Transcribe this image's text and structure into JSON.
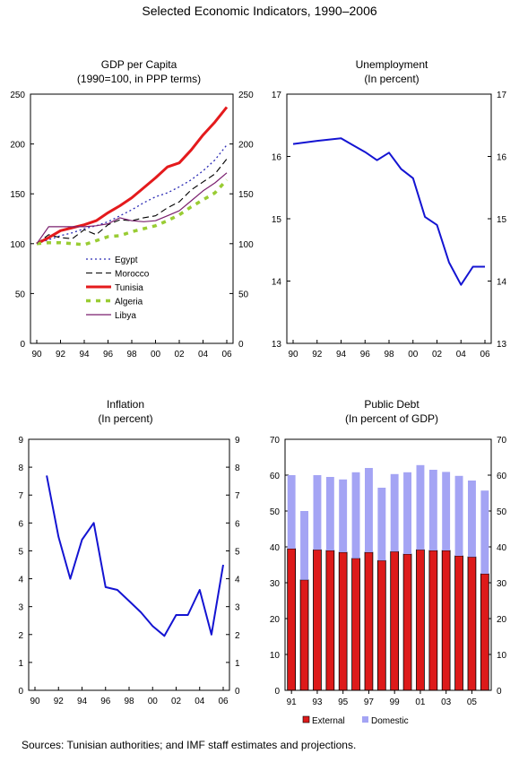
{
  "title": "Selected Economic Indicators, 1990–2006",
  "source": "Sources: Tunisian authorities; and IMF staff estimates and projections.",
  "chart_data": [
    {
      "id": "gdp",
      "type": "line",
      "title": "GDP per Capita",
      "subtitle": "(1990=100, in PPP terms)",
      "x": [
        90,
        91,
        92,
        93,
        94,
        95,
        96,
        97,
        98,
        99,
        100,
        101,
        102,
        103,
        104,
        105,
        106
      ],
      "xticks": [
        "90",
        "92",
        "94",
        "96",
        "98",
        "00",
        "02",
        "04",
        "06"
      ],
      "ylim": [
        0,
        250
      ],
      "yticks": [
        0,
        50,
        100,
        150,
        200,
        250
      ],
      "grid": false,
      "legend_position": "lower-left",
      "series": [
        {
          "name": "Egypt",
          "color": "#2a2ab4",
          "values": [
            100,
            104,
            108,
            111,
            115,
            118,
            122,
            128,
            134,
            141,
            147,
            151,
            157,
            164,
            173,
            184,
            199
          ]
        },
        {
          "name": "Morocco",
          "color": "#000000",
          "values": [
            100,
            109,
            106,
            105,
            114,
            109,
            119,
            124,
            123,
            126,
            128,
            136,
            142,
            154,
            162,
            170,
            185
          ]
        },
        {
          "name": "Tunisia",
          "color": "#e41a1c",
          "values": [
            100,
            106,
            113,
            116,
            119,
            123,
            131,
            138,
            146,
            156,
            166,
            177,
            181,
            194,
            209,
            222,
            237
          ]
        },
        {
          "name": "Algeria",
          "color": "#99cc33",
          "values": [
            100,
            101,
            101,
            100,
            99,
            103,
            107,
            108,
            112,
            115,
            118,
            123,
            129,
            137,
            144,
            151,
            164
          ]
        },
        {
          "name": "Libya",
          "color": "#7a1f6e",
          "values": [
            100,
            117,
            117,
            117,
            117,
            118,
            120,
            126,
            123,
            122,
            123,
            128,
            133,
            143,
            153,
            161,
            171
          ]
        }
      ]
    },
    {
      "id": "unemployment",
      "type": "line",
      "title": "Unemployment",
      "subtitle": "(In percent)",
      "x": [
        90,
        92,
        94,
        95,
        96,
        97,
        98,
        99,
        100,
        101,
        102,
        103,
        104,
        105,
        106
      ],
      "xticks": [
        "90",
        "92",
        "94",
        "96",
        "98",
        "00",
        "02",
        "04",
        "06"
      ],
      "ylim": [
        13,
        17
      ],
      "yticks": [
        13,
        14,
        15,
        16,
        17
      ],
      "grid": false,
      "series": [
        {
          "name": "",
          "color": "#1414d2",
          "values": [
            16.2,
            16.25,
            16.29,
            16.18,
            16.07,
            15.94,
            16.06,
            15.8,
            15.65,
            15.03,
            14.9,
            14.3,
            13.94,
            14.23,
            14.23
          ]
        }
      ]
    },
    {
      "id": "inflation",
      "type": "line",
      "title": "Inflation",
      "subtitle": "(In percent)",
      "x": [
        91,
        92,
        93,
        94,
        95,
        96,
        97,
        98,
        99,
        100,
        101,
        102,
        103,
        104,
        105,
        106
      ],
      "xticks": [
        "90",
        "92",
        "94",
        "96",
        "98",
        "00",
        "02",
        "04",
        "06"
      ],
      "ylim": [
        0,
        9
      ],
      "yticks": [
        0,
        1,
        2,
        3,
        4,
        5,
        6,
        7,
        8,
        9
      ],
      "grid": false,
      "series": [
        {
          "name": "",
          "color": "#1414d2",
          "values": [
            7.7,
            5.5,
            4.0,
            5.4,
            6.0,
            3.7,
            3.6,
            3.2,
            2.8,
            2.3,
            1.95,
            2.7,
            2.7,
            3.6,
            2.0,
            4.5
          ]
        }
      ]
    },
    {
      "id": "debt",
      "type": "bar",
      "stacked": true,
      "title": "Public Debt",
      "subtitle": "(In percent of GDP)",
      "categories": [
        "91",
        "92",
        "93",
        "94",
        "95",
        "96",
        "97",
        "98",
        "99",
        "00",
        "01",
        "02",
        "03",
        "04",
        "05",
        "06"
      ],
      "xticks": [
        "91",
        "93",
        "95",
        "97",
        "99",
        "01",
        "03",
        "05"
      ],
      "ylim": [
        0,
        70
      ],
      "yticks": [
        0,
        10,
        20,
        30,
        40,
        50,
        60,
        70
      ],
      "grid": false,
      "legend_position": "bottom",
      "series": [
        {
          "name": "External",
          "color": "#dd1a1a",
          "values": [
            39.5,
            30.8,
            39.2,
            39.0,
            38.5,
            36.8,
            38.5,
            36.2,
            38.7,
            38.0,
            39.2,
            39.0,
            39.0,
            37.5,
            37.2,
            32.5
          ]
        },
        {
          "name": "Domestic",
          "color": "#a4a4f4",
          "values": [
            20.5,
            19.2,
            20.8,
            20.5,
            20.3,
            24.0,
            23.5,
            20.3,
            21.6,
            22.8,
            23.6,
            22.5,
            21.9,
            22.3,
            21.3,
            23.2
          ]
        }
      ]
    }
  ]
}
